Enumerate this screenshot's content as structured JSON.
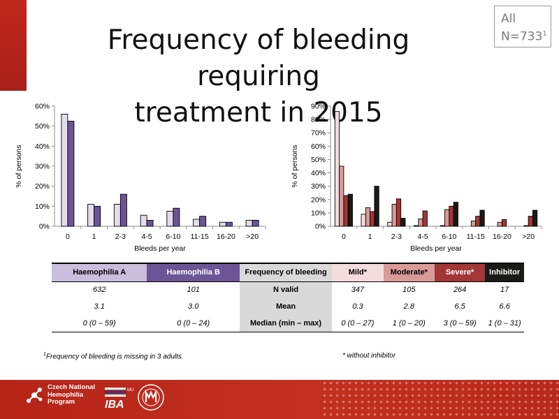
{
  "title_line1": "Frequency of bleeding requiring",
  "title_line2": "treatment in 2015",
  "badge": {
    "line1": "All",
    "line2": "N=733",
    "sup": "1"
  },
  "chart_data": [
    {
      "type": "bar",
      "categories": [
        "0",
        "1",
        "2-3",
        "4-5",
        "6-10",
        "11-15",
        "16-20",
        ">20"
      ],
      "series": [
        {
          "values": [
            56,
            11,
            11,
            5.5,
            7.5,
            3.5,
            2,
            3
          ],
          "color": "#e3dced"
        },
        {
          "values": [
            52.5,
            10,
            16,
            3,
            9,
            5,
            2,
            3
          ],
          "color": "#6b5596"
        }
      ],
      "xlabel": "Bleeds per year",
      "ylabel": "% of persons",
      "ylim": [
        0,
        60
      ],
      "yticks": [
        "0%",
        "10%",
        "20%",
        "30%",
        "40%",
        "50%",
        "60%"
      ]
    },
    {
      "type": "bar",
      "categories": [
        "0",
        "1",
        "2-3",
        "4-5",
        "6-10",
        "11-15",
        "16-20",
        ">20"
      ],
      "series": [
        {
          "values": [
            86,
            9,
            3,
            0.5,
            0.5,
            0,
            0,
            0
          ],
          "color": "#f5dcdc"
        },
        {
          "values": [
            45,
            14,
            16.5,
            5.5,
            12.5,
            4,
            3,
            0.5
          ],
          "color": "#d99a9a"
        },
        {
          "values": [
            23,
            11,
            20.5,
            11.5,
            15,
            7.5,
            5,
            7.5
          ],
          "color": "#a33636"
        },
        {
          "values": [
            24,
            30,
            6,
            0,
            18,
            12,
            0,
            12
          ],
          "color": "#1a1a16"
        }
      ],
      "xlabel": "Bleeds per year",
      "ylabel": "% of persons",
      "ylim": [
        0,
        90
      ],
      "yticks": [
        "0%",
        "10%",
        "20%",
        "30%",
        "40%",
        "50%",
        "60%",
        "70%",
        "80%",
        "90%"
      ]
    }
  ],
  "table": {
    "headers": [
      {
        "label": "Haemophilia A",
        "bg": "#c9bedb",
        "color": "#000000"
      },
      {
        "label": "Haemophilia B",
        "bg": "#6b5596",
        "color": "#ffffff"
      },
      {
        "label": "Frequency of bleeding",
        "bg": "#d9d9d9",
        "color": "#000000"
      },
      {
        "label": "Mild*",
        "bg": "#f5dcdc",
        "color": "#000000"
      },
      {
        "label": "Moderate*",
        "bg": "#d99a9a",
        "color": "#000000"
      },
      {
        "label": "Severe*",
        "bg": "#a33636",
        "color": "#ffffff"
      },
      {
        "label": "Inhibitor",
        "bg": "#1a1a16",
        "color": "#ffffff"
      }
    ],
    "rows": [
      [
        "632",
        "101",
        "N valid",
        "347",
        "105",
        "264",
        "17"
      ],
      [
        "3.1",
        "3.0",
        "Mean",
        "0.3",
        "2.8",
        "6.5",
        "6.6"
      ],
      [
        "0 (0 – 59)",
        "0 (0 – 24)",
        "Median (min – max)",
        "0 (0 – 27)",
        "1 (0 – 20)",
        "3 (0 – 59)",
        "1 (0 – 31)"
      ]
    ]
  },
  "footnote": {
    "sup": "1",
    "text": "Frequency of bleeding is missing in 3 adults."
  },
  "footnote2": "* without inhibitor",
  "footer": {
    "logo_text": [
      "Czech National",
      "Hemophilia",
      "Program"
    ],
    "iba_text": "IBA",
    "mu_label": "MU"
  }
}
